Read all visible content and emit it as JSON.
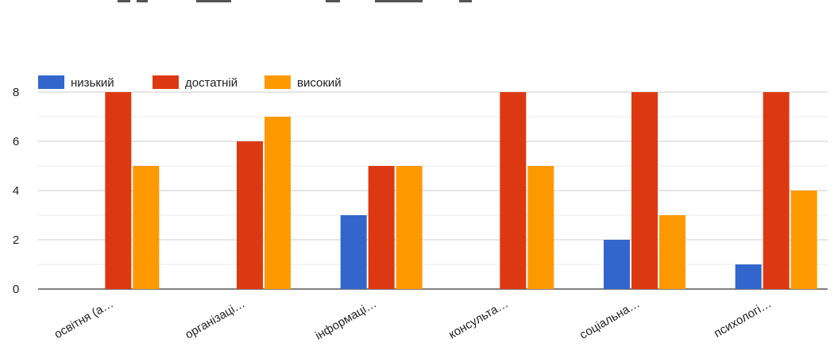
{
  "chart_data": {
    "type": "bar",
    "categories": [
      "освітня (а…",
      "організаці…",
      "інформаці…",
      "консульта…",
      "соціальна…",
      "психологі…"
    ],
    "series": [
      {
        "name": "низький",
        "color": "#3366cc",
        "values": [
          0,
          0,
          3,
          0,
          2,
          1
        ]
      },
      {
        "name": "достатній",
        "color": "#dc3912",
        "values": [
          8,
          6,
          5,
          8,
          8,
          8
        ]
      },
      {
        "name": "високий",
        "color": "#ff9900",
        "values": [
          5,
          7,
          5,
          5,
          3,
          4
        ]
      }
    ],
    "yticks": [
      0,
      2,
      4,
      6,
      8
    ],
    "ylim": [
      0,
      8.8
    ],
    "grid": true,
    "legend_position": "top-left"
  }
}
